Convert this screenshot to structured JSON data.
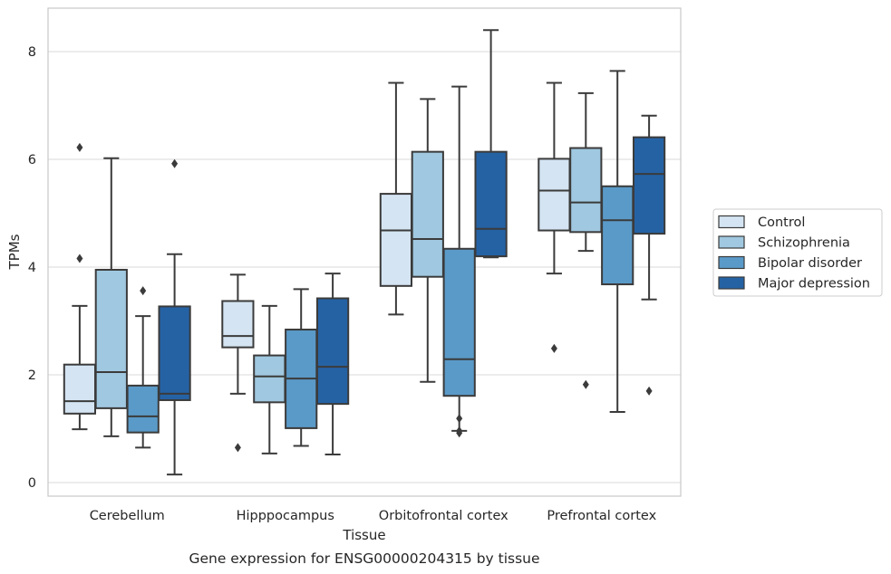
{
  "chart_data": {
    "type": "box",
    "title": "Gene expression for ENSG00000204315 by tissue",
    "xlabel": "Tissue",
    "ylabel": "TPMs",
    "ylim": [
      -0.25,
      8.8
    ],
    "yticks": [
      0,
      2,
      4,
      6,
      8
    ],
    "grid": "horizontal",
    "legend_position": "right",
    "categories": [
      "Cerebellum",
      "Hipppocampus",
      "Orbitofrontal cortex",
      "Prefrontal cortex"
    ],
    "series": [
      {
        "name": "Control",
        "color": "#d4e4f2",
        "boxes": [
          {
            "whislo": 0.99,
            "q1": 1.28,
            "med": 1.51,
            "q3": 2.19,
            "whishi": 3.28,
            "fliers": [
              6.22,
              4.16
            ]
          },
          {
            "whislo": 1.65,
            "q1": 2.51,
            "med": 2.72,
            "q3": 3.37,
            "whishi": 3.86,
            "fliers": [
              0.65
            ]
          },
          {
            "whislo": 3.12,
            "q1": 3.65,
            "med": 4.68,
            "q3": 5.36,
            "whishi": 7.42,
            "fliers": []
          },
          {
            "whislo": 3.88,
            "q1": 4.68,
            "med": 5.42,
            "q3": 6.01,
            "whishi": 7.42,
            "fliers": [
              2.49
            ]
          }
        ]
      },
      {
        "name": "Schizophrenia",
        "color": "#a0c8e0",
        "boxes": [
          {
            "whislo": 0.86,
            "q1": 1.38,
            "med": 2.05,
            "q3": 3.95,
            "whishi": 6.02,
            "fliers": []
          },
          {
            "whislo": 0.54,
            "q1": 1.49,
            "med": 1.97,
            "q3": 2.36,
            "whishi": 3.28,
            "fliers": []
          },
          {
            "whislo": 1.87,
            "q1": 3.82,
            "med": 4.52,
            "q3": 6.14,
            "whishi": 7.12,
            "fliers": []
          },
          {
            "whislo": 4.3,
            "q1": 4.65,
            "med": 5.2,
            "q3": 6.21,
            "whishi": 7.23,
            "fliers": [
              1.82
            ]
          }
        ]
      },
      {
        "name": "Bipolar disorder",
        "color": "#5a9ac8",
        "boxes": [
          {
            "whislo": 0.65,
            "q1": 0.93,
            "med": 1.23,
            "q3": 1.8,
            "whishi": 3.09,
            "fliers": [
              3.56
            ]
          },
          {
            "whislo": 0.68,
            "q1": 1.01,
            "med": 1.93,
            "q3": 2.84,
            "whishi": 3.59,
            "fliers": []
          },
          {
            "whislo": 0.96,
            "q1": 1.61,
            "med": 2.29,
            "q3": 4.34,
            "whishi": 7.35,
            "fliers": [
              1.19,
              0.96,
              0.92
            ]
          },
          {
            "whislo": 1.31,
            "q1": 3.68,
            "med": 4.87,
            "q3": 5.5,
            "whishi": 7.64,
            "fliers": []
          }
        ]
      },
      {
        "name": "Major depression",
        "color": "#2562a4",
        "boxes": [
          {
            "whislo": 0.15,
            "q1": 1.53,
            "med": 1.65,
            "q3": 3.27,
            "whishi": 4.24,
            "fliers": [
              5.92
            ]
          },
          {
            "whislo": 0.52,
            "q1": 1.46,
            "med": 2.15,
            "q3": 3.42,
            "whishi": 3.88,
            "fliers": []
          },
          {
            "whislo": 4.18,
            "q1": 4.2,
            "med": 4.71,
            "q3": 6.14,
            "whishi": 8.4,
            "fliers": []
          },
          {
            "whislo": 3.4,
            "q1": 4.62,
            "med": 5.73,
            "q3": 6.41,
            "whishi": 6.81,
            "fliers": [
              1.7
            ]
          }
        ]
      }
    ]
  }
}
